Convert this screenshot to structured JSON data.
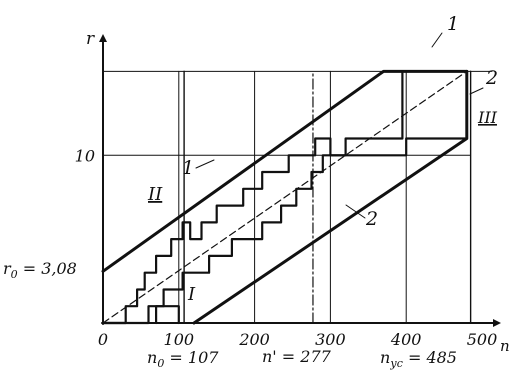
{
  "chart_data": {
    "type": "line",
    "title": "",
    "xlabel": "n",
    "ylabel": "r",
    "xlim": [
      0,
      500
    ],
    "ylim": [
      0,
      15.5
    ],
    "grid": true,
    "x_ticks": [
      {
        "value": 0,
        "label": "0"
      },
      {
        "value": 100,
        "label": "100"
      },
      {
        "value": 200,
        "label": "200"
      },
      {
        "value": 300,
        "label": "300"
      },
      {
        "value": 400,
        "label": "400"
      },
      {
        "value": 500,
        "label": "500"
      }
    ],
    "y_ticks": [
      {
        "value": 10,
        "label": "10"
      }
    ],
    "vertical_lines": [
      {
        "x": 107,
        "style": "solid"
      },
      {
        "x": 277,
        "style": "dashdot"
      },
      {
        "x": 485,
        "style": "solid"
      }
    ],
    "series": [
      {
        "name": "1",
        "style": "bold",
        "points": [
          [
            0,
            3.08
          ],
          [
            370,
            15
          ],
          [
            480,
            15
          ]
        ]
      },
      {
        "name": "2",
        "style": "bold",
        "points": [
          [
            120,
            0
          ],
          [
            480,
            11
          ],
          [
            480,
            15
          ]
        ]
      },
      {
        "name": "",
        "style": "dashed",
        "points": [
          [
            0,
            0
          ],
          [
            480,
            15
          ]
        ]
      },
      {
        "name": "",
        "style": "step",
        "points": [
          [
            0,
            0
          ],
          [
            30,
            0
          ],
          [
            30,
            1
          ],
          [
            45,
            1
          ],
          [
            45,
            2
          ],
          [
            55,
            2
          ],
          [
            55,
            3
          ],
          [
            70,
            3
          ],
          [
            70,
            4
          ],
          [
            90,
            4
          ],
          [
            90,
            5
          ],
          [
            105,
            5
          ],
          [
            105,
            6
          ],
          [
            115,
            6
          ],
          [
            115,
            5
          ],
          [
            130,
            5
          ],
          [
            130,
            6
          ],
          [
            150,
            6
          ],
          [
            150,
            7
          ],
          [
            185,
            7
          ],
          [
            185,
            8
          ],
          [
            210,
            8
          ],
          [
            210,
            9
          ],
          [
            245,
            9
          ],
          [
            245,
            10
          ],
          [
            280,
            10
          ],
          [
            280,
            11
          ],
          [
            300,
            11
          ],
          [
            300,
            10
          ],
          [
            320,
            10
          ],
          [
            320,
            11
          ],
          [
            395,
            11
          ],
          [
            395,
            15
          ],
          [
            480,
            15
          ]
        ]
      },
      {
        "name": "",
        "style": "step",
        "points": [
          [
            0,
            0
          ],
          [
            60,
            0
          ],
          [
            60,
            1
          ],
          [
            80,
            1
          ],
          [
            80,
            2
          ],
          [
            105,
            2
          ],
          [
            105,
            3
          ],
          [
            140,
            3
          ],
          [
            140,
            4
          ],
          [
            170,
            4
          ],
          [
            170,
            5
          ],
          [
            210,
            5
          ],
          [
            210,
            6
          ],
          [
            235,
            6
          ],
          [
            235,
            7
          ],
          [
            255,
            7
          ],
          [
            255,
            8
          ],
          [
            275,
            8
          ],
          [
            275,
            9
          ],
          [
            290,
            9
          ],
          [
            290,
            10
          ],
          [
            400,
            10
          ],
          [
            400,
            11
          ],
          [
            480,
            11
          ]
        ]
      },
      {
        "name": "",
        "style": "step",
        "points": [
          [
            70,
            0
          ],
          [
            70,
            1
          ],
          [
            100,
            1
          ],
          [
            100,
            0
          ]
        ]
      }
    ],
    "annotations": [
      {
        "text": "1",
        "role": "curve-1-label-upper"
      },
      {
        "text": "1",
        "role": "curve-1-label-inner"
      },
      {
        "text": "2",
        "role": "curve-2-label-upper"
      },
      {
        "text": "2",
        "role": "curve-2-label-inner"
      },
      {
        "text": "II",
        "role": "region-II"
      },
      {
        "text": "I",
        "role": "region-I"
      },
      {
        "text": "III",
        "role": "region-III"
      },
      {
        "text": "r",
        "role": "y-axis-symbol"
      },
      {
        "text": "n",
        "role": "x-axis-symbol"
      },
      {
        "text": "r",
        "role": "r0-symbol"
      },
      {
        "text": "0",
        "role": "r0-subscript"
      },
      {
        "text": " = 3,08",
        "role": "r0-value"
      },
      {
        "text": "n",
        "role": "n0-symbol"
      },
      {
        "text": "0",
        "role": "n0-subscript"
      },
      {
        "text": " = 107",
        "role": "n0-value"
      },
      {
        "text": "n' = 277",
        "role": "nprime"
      },
      {
        "text": "n",
        "role": "nuc-symbol"
      },
      {
        "text": "ус",
        "role": "nuc-subscript"
      },
      {
        "text": " = 485",
        "role": "nuc-value"
      }
    ]
  }
}
